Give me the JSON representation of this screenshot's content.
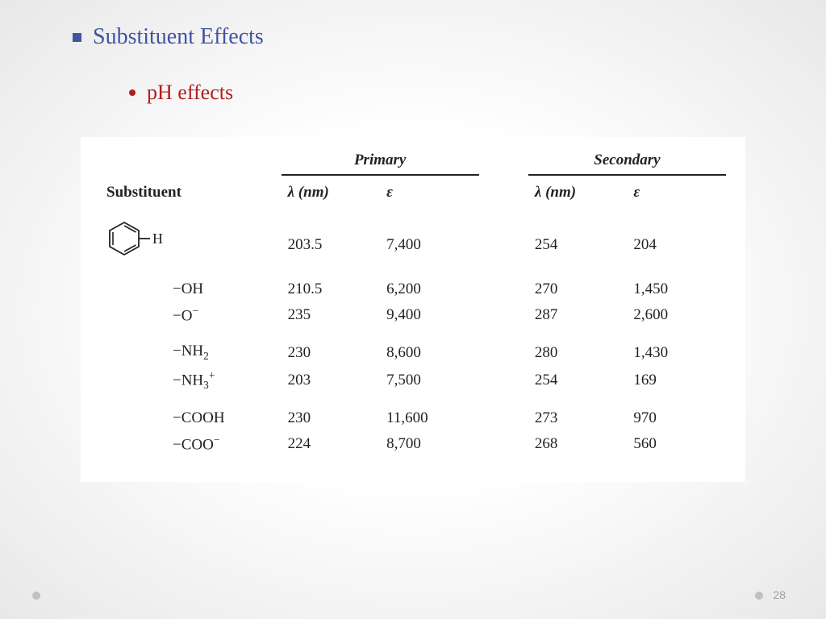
{
  "title": "Substituent Effects",
  "subtitle": "pH effects",
  "page_number": "28",
  "table": {
    "substituent_header": "Substituent",
    "group_primary": "Primary",
    "group_secondary": "Secondary",
    "lambda_header": "λ (nm)",
    "epsilon_header": "ε",
    "benzene_label": "H",
    "rows": [
      {
        "sub_html": "—H",
        "p_l": "203.5",
        "p_e": "7,400",
        "s_l": "254",
        "s_e": "204",
        "benzene": true
      },
      {
        "sub_html": "−OH",
        "p_l": "210.5",
        "p_e": "6,200",
        "s_l": "270",
        "s_e": "1,450"
      },
      {
        "sub_html": "−O<sup>−</sup>",
        "p_l": "235",
        "p_e": "9,400",
        "s_l": "287",
        "s_e": "2,600"
      },
      {
        "sub_html": "−NH<sub>2</sub>",
        "p_l": "230",
        "p_e": "8,600",
        "s_l": "280",
        "s_e": "1,430"
      },
      {
        "sub_html": "−NH<sub>3</sub><sup>+</sup>",
        "p_l": "203",
        "p_e": "7,500",
        "s_l": "254",
        "s_e": "169"
      },
      {
        "sub_html": "−COOH",
        "p_l": "230",
        "p_e": "11,600",
        "s_l": "273",
        "s_e": "970"
      },
      {
        "sub_html": "−COO<sup>−</sup>",
        "p_l": "224",
        "p_e": "8,700",
        "s_l": "268",
        "s_e": "560"
      }
    ],
    "group_breaks_after": [
      2,
      4
    ]
  },
  "colors": {
    "title": "#3e55a0",
    "subtitle": "#b02020",
    "text": "#222222",
    "page_num": "#a0a0a0",
    "corner_dot": "#c0c0c0"
  }
}
